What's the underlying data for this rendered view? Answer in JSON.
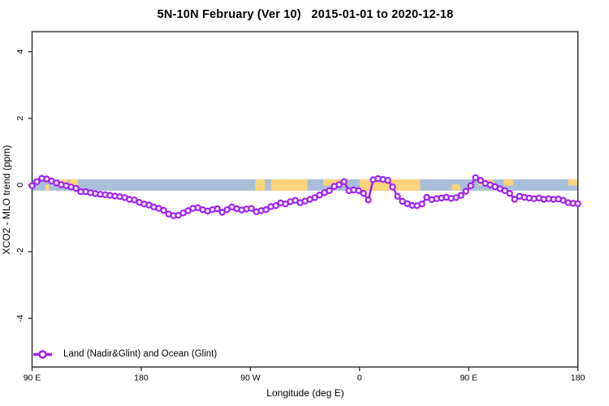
{
  "title": "5N-10N February (Ver 10)   2015-01-01 to 2020-12-18",
  "legend": {
    "label": "Land (Nadir&Glint) and Ocean (Glint)",
    "marker_color": "#A020F0"
  },
  "colors": {
    "series": "#A020F0",
    "marker_fill": "#ffffff",
    "zero_band": "#A9BEDA",
    "land_patch": "#FBD47C",
    "axis": "#2a2a2a",
    "text": "#000000"
  },
  "chart_data": {
    "type": "line",
    "title": "5N-10N February (Ver 10)   2015-01-01 to 2020-12-18",
    "xlabel": "Longitude (deg E)",
    "ylabel": "XCO2 - MLO trend (ppm)",
    "x_axis_span_deg": 450,
    "x_ticks": [
      {
        "label": "90 E",
        "axis_deg": 0
      },
      {
        "label": "180",
        "axis_deg": 90
      },
      {
        "label": "90 W",
        "axis_deg": 180
      },
      {
        "label": "0",
        "axis_deg": 270
      },
      {
        "label": "90 E",
        "axis_deg": 360
      },
      {
        "label": "180",
        "axis_deg": 450
      }
    ],
    "y_ticks": [
      {
        "label": "-4",
        "value": -4
      },
      {
        "label": "-2",
        "value": -2
      },
      {
        "label": "0",
        "value": 0
      },
      {
        "label": "2",
        "value": 2
      },
      {
        "label": "4",
        "value": 4
      }
    ],
    "ylim": [
      -5.46,
      4.6
    ],
    "grid": false,
    "legend_position": "bottom-left",
    "zero_band_ppm": {
      "from": -0.17,
      "to": 0.17
    },
    "land_patches": [
      {
        "from_deg": 11,
        "to_deg": 14,
        "extent": "bottom"
      },
      {
        "from_deg": 22,
        "to_deg": 30,
        "extent": "top"
      },
      {
        "from_deg": 31,
        "to_deg": 38,
        "extent": "top"
      },
      {
        "from_deg": 184,
        "to_deg": 192,
        "extent": "full"
      },
      {
        "from_deg": 197,
        "to_deg": 227,
        "extent": "full"
      },
      {
        "from_deg": 240,
        "to_deg": 260,
        "extent": "top"
      },
      {
        "from_deg": 270,
        "to_deg": 320,
        "extent": "full"
      },
      {
        "from_deg": 346,
        "to_deg": 353,
        "extent": "bottom"
      },
      {
        "from_deg": 368,
        "to_deg": 380,
        "extent": "top"
      },
      {
        "from_deg": 389,
        "to_deg": 397,
        "extent": "top"
      },
      {
        "from_deg": 442,
        "to_deg": 450,
        "extent": "top"
      }
    ],
    "series": [
      {
        "name": "Land (Nadir&Glint) and Ocean (Glint)",
        "color": "#A020F0",
        "start_deg": 0,
        "step_deg": 4.0179,
        "values": [
          -0.02,
          0.1,
          0.2,
          0.18,
          0.12,
          0.06,
          0.01,
          -0.02,
          -0.06,
          -0.1,
          -0.2,
          -0.2,
          -0.23,
          -0.26,
          -0.28,
          -0.29,
          -0.31,
          -0.33,
          -0.35,
          -0.38,
          -0.43,
          -0.45,
          -0.52,
          -0.57,
          -0.6,
          -0.66,
          -0.7,
          -0.76,
          -0.87,
          -0.92,
          -0.91,
          -0.84,
          -0.77,
          -0.7,
          -0.68,
          -0.74,
          -0.78,
          -0.74,
          -0.71,
          -0.82,
          -0.74,
          -0.66,
          -0.71,
          -0.75,
          -0.72,
          -0.7,
          -0.8,
          -0.77,
          -0.74,
          -0.65,
          -0.62,
          -0.54,
          -0.57,
          -0.5,
          -0.46,
          -0.53,
          -0.48,
          -0.43,
          -0.38,
          -0.3,
          -0.23,
          -0.17,
          -0.04,
          0.01,
          0.1,
          -0.17,
          -0.15,
          -0.17,
          -0.25,
          -0.45,
          0.16,
          0.19,
          0.17,
          0.14,
          -0.06,
          -0.34,
          -0.49,
          -0.56,
          -0.61,
          -0.62,
          -0.57,
          -0.37,
          -0.44,
          -0.41,
          -0.39,
          -0.37,
          -0.4,
          -0.38,
          -0.31,
          -0.19,
          -0.02,
          0.22,
          0.14,
          0.05,
          0.0,
          -0.05,
          -0.11,
          -0.17,
          -0.25,
          -0.43,
          -0.34,
          -0.37,
          -0.39,
          -0.41,
          -0.39,
          -0.43,
          -0.41,
          -0.43,
          -0.42,
          -0.46,
          -0.53,
          -0.55,
          -0.56
        ]
      }
    ]
  }
}
